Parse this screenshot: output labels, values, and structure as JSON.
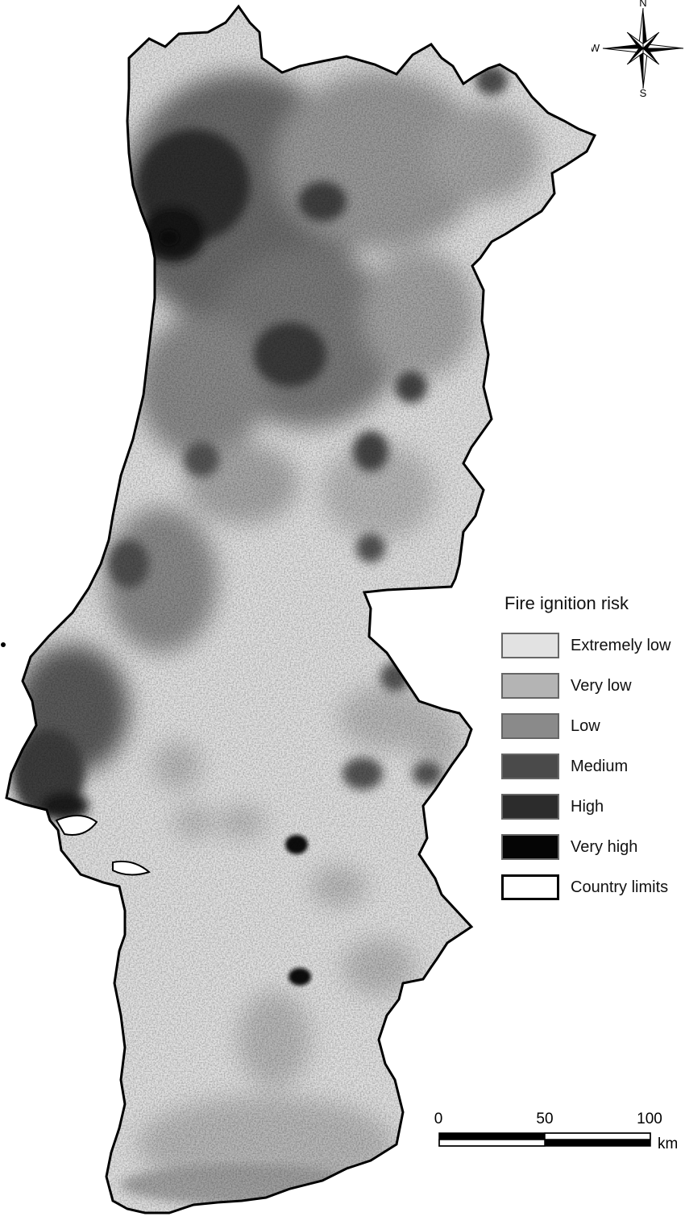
{
  "legend": {
    "title": "Fire ignition risk",
    "classes": [
      {
        "label": "Extremely low",
        "color": "#e2e2e2"
      },
      {
        "label": "Very low",
        "color": "#b4b4b4"
      },
      {
        "label": "Low",
        "color": "#8a8a8a"
      },
      {
        "label": "Medium",
        "color": "#4a4a4a"
      },
      {
        "label": "High",
        "color": "#2c2c2c"
      },
      {
        "label": "Very high",
        "color": "#050505"
      },
      {
        "label": "Country limits",
        "color": "#ffffff",
        "outline": true
      }
    ]
  },
  "compass": {
    "north": "N",
    "south": "S",
    "west": "W"
  },
  "scale": {
    "ticks": [
      "0",
      "50",
      "100"
    ],
    "unit": "km"
  }
}
